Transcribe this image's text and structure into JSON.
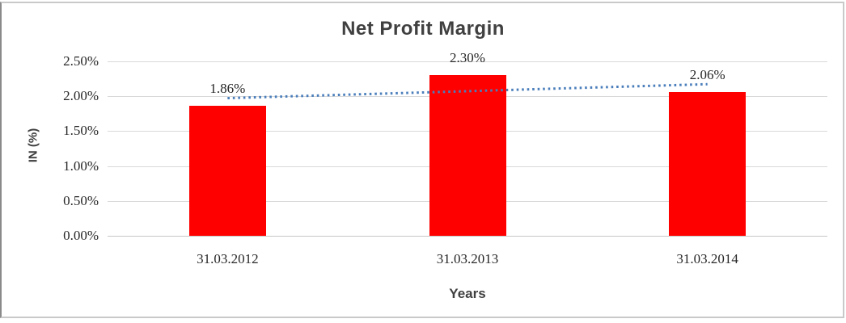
{
  "chart_data": {
    "type": "bar",
    "title": "Net Profit Margin",
    "xlabel": "Years",
    "ylabel": "IN (%)",
    "categories": [
      "31.03.2012",
      "31.03.2013",
      "31.03.2014"
    ],
    "values": [
      1.86,
      2.3,
      2.06
    ],
    "data_labels": [
      "1.86%",
      "2.30%",
      "2.06%"
    ],
    "y_ticks": [
      "2.50%",
      "2.00%",
      "1.50%",
      "1.00%",
      "0.50%",
      "0.00%"
    ],
    "ylim": [
      0,
      2.5
    ],
    "grid": true,
    "legend": "none",
    "bar_color": "#ff0000",
    "gridline_color": "#d9d9d9",
    "text_color": "#262626",
    "heading_color": "#404040",
    "trendline": {
      "type": "linear",
      "style": "dotted",
      "color": "#4a7ebb",
      "start_value": 1.973,
      "end_value": 2.173
    }
  }
}
